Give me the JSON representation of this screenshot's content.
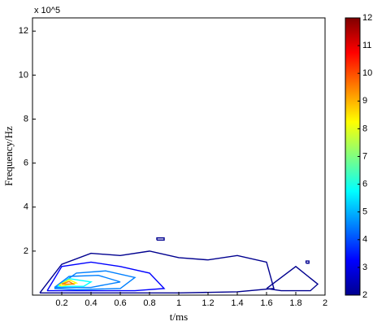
{
  "chart_data": {
    "type": "contour",
    "xlabel": "t/ms",
    "ylabel": "Frequency/Hz",
    "y_multiplier": "x 10^5",
    "xlim": [
      0,
      2
    ],
    "xticks": [
      0.2,
      0.4,
      0.6,
      0.8,
      1,
      1.2,
      1.4,
      1.6,
      1.8,
      2
    ],
    "ylim": [
      0,
      12.6
    ],
    "yticks": [
      2,
      4,
      6,
      8,
      10,
      12
    ],
    "clim": [
      2,
      12
    ],
    "cticks": [
      2,
      3,
      4,
      5,
      6,
      7,
      8,
      9,
      10,
      11,
      12
    ],
    "colormap": [
      "#00008f",
      "#0000ff",
      "#0080ff",
      "#00ffff",
      "#80ff80",
      "#ffff00",
      "#ff8000",
      "#ff0000",
      "#800000"
    ],
    "series": [
      {
        "level": 2,
        "x": [
          0.05,
          0.2,
          0.4,
          0.6,
          0.8,
          1.0,
          1.2,
          1.4,
          1.6,
          1.65,
          1.4,
          1.0,
          0.6,
          0.2,
          0.05
        ],
        "y": [
          0.1,
          1.4,
          1.9,
          1.8,
          2.0,
          1.7,
          1.6,
          1.8,
          1.5,
          0.3,
          0.15,
          0.1,
          0.1,
          0.1,
          0.1
        ]
      },
      {
        "level": 2,
        "x": [
          1.6,
          1.8,
          1.95,
          1.9,
          1.7,
          1.6
        ],
        "y": [
          0.3,
          1.3,
          0.5,
          0.2,
          0.2,
          0.3
        ]
      },
      {
        "level": 2,
        "x": [
          0.85,
          0.9,
          0.9,
          0.85,
          0.85
        ],
        "y": [
          2.5,
          2.5,
          2.6,
          2.6,
          2.5
        ]
      },
      {
        "level": 2,
        "x": [
          1.87,
          1.89,
          1.89,
          1.87,
          1.87
        ],
        "y": [
          1.45,
          1.45,
          1.55,
          1.55,
          1.45
        ]
      },
      {
        "level": 3,
        "x": [
          0.1,
          0.2,
          0.4,
          0.6,
          0.8,
          0.9,
          0.7,
          0.4,
          0.1
        ],
        "y": [
          0.2,
          1.3,
          1.5,
          1.3,
          1.0,
          0.3,
          0.2,
          0.2,
          0.2
        ]
      },
      {
        "level": 4,
        "x": [
          0.15,
          0.3,
          0.5,
          0.7,
          0.6,
          0.3,
          0.15
        ],
        "y": [
          0.3,
          1.0,
          1.1,
          0.8,
          0.3,
          0.25,
          0.3
        ]
      },
      {
        "level": 5,
        "x": [
          0.15,
          0.25,
          0.45,
          0.6,
          0.4,
          0.15
        ],
        "y": [
          0.35,
          0.85,
          0.9,
          0.6,
          0.35,
          0.35
        ]
      },
      {
        "level": 6,
        "x": [
          0.17,
          0.25,
          0.4,
          0.35,
          0.17
        ],
        "y": [
          0.4,
          0.75,
          0.6,
          0.4,
          0.4
        ]
      },
      {
        "level": 8,
        "x": [
          0.18,
          0.25,
          0.3,
          0.2,
          0.18
        ],
        "y": [
          0.45,
          0.7,
          0.55,
          0.42,
          0.45
        ]
      },
      {
        "level": 9,
        "x": [
          0.2,
          0.25,
          0.28,
          0.2
        ],
        "y": [
          0.5,
          0.62,
          0.5,
          0.5
        ]
      }
    ]
  }
}
